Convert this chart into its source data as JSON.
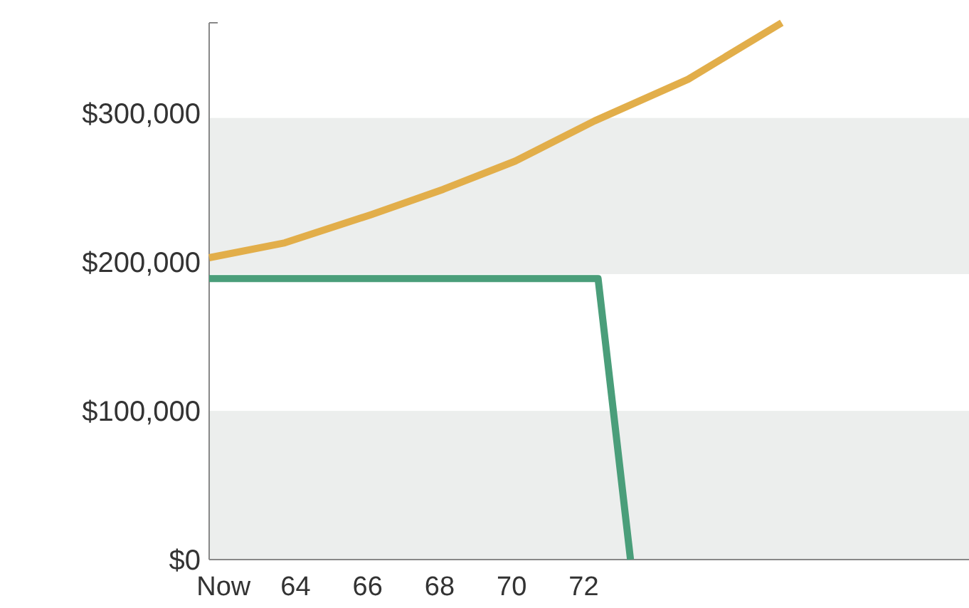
{
  "chart_data": {
    "type": "line",
    "series": [
      {
        "color": "#e2ae4a",
        "x": [
          61.6,
          63.7,
          66.1,
          68.1,
          70.1,
          72.3,
          74.9,
          77.5
        ],
        "values": [
          203000,
          213000,
          232000,
          249000,
          268000,
          295000,
          323000,
          361000
        ]
      },
      {
        "color": "#4a9e7a",
        "x": [
          61.6,
          72.4,
          73.3
        ],
        "values": [
          189000,
          189000,
          0
        ]
      }
    ],
    "xlim": [
      61.6,
      82.7
    ],
    "xticks": [
      {
        "value": 62,
        "label": "Now"
      },
      64,
      66,
      68,
      70,
      72
    ],
    "ylim": [
      0,
      361000
    ],
    "yticks": [
      {
        "value": 0,
        "label": "$0"
      },
      {
        "value": 100000,
        "label": "$100,000"
      },
      {
        "value": 200000,
        "label": "$200,000"
      },
      {
        "value": 300000,
        "label": "$300,000"
      }
    ],
    "bands": [
      {
        "axis": "y",
        "from": 0,
        "to": 100000,
        "color": "#eceeed"
      },
      {
        "axis": "y",
        "from": 192000,
        "to": 297000,
        "color": "#eceeed"
      }
    ],
    "grid": false,
    "line_style": "solid"
  }
}
